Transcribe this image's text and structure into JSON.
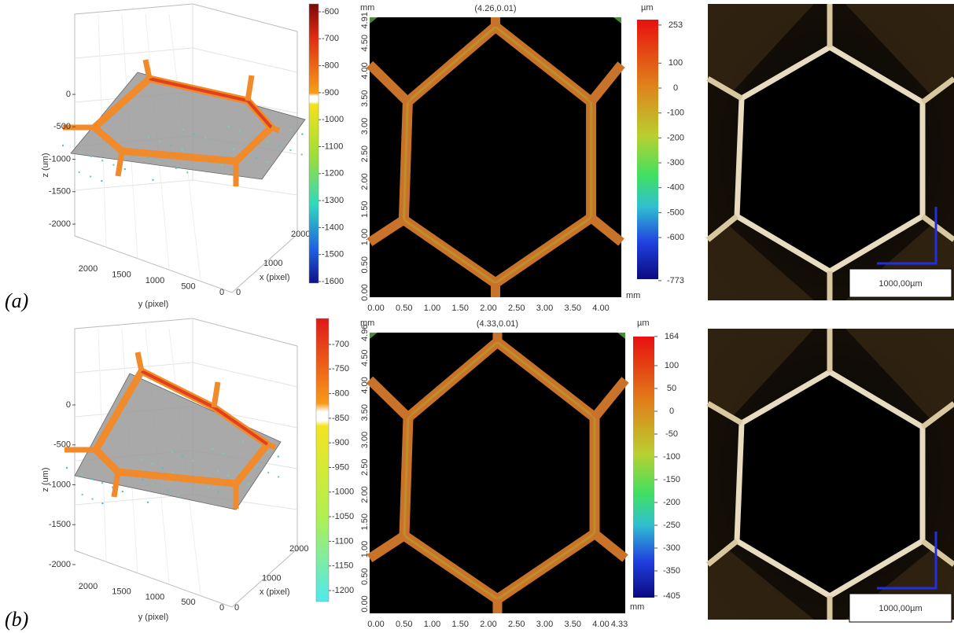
{
  "panels": [
    {
      "label": "(a)",
      "plot3d": {
        "zlabel": "z (um)",
        "xlabel": "x (pixel)",
        "ylabel": "y (pixel)",
        "zticks": [
          "0",
          "-500",
          "-1000",
          "-1500",
          "-2000"
        ],
        "xticks": [
          "0",
          "1000",
          "2000"
        ],
        "yticks": [
          "2000",
          "1500",
          "1000",
          "500",
          "0"
        ],
        "colorbar_ticks": [
          "-600",
          "-700",
          "-800",
          "-900",
          "-1000",
          "-1100",
          "-1200",
          "-1300",
          "-1400",
          "-1500",
          "-1600"
        ]
      },
      "heightmap": {
        "yunit": "mm",
        "xunit": "mm",
        "cursor": "(4.26,0.01)",
        "yticks": [
          "4.91",
          "4.50",
          "4.00",
          "3.50",
          "3.00",
          "2.50",
          "2.00",
          "1.50",
          "1.00",
          "0.50",
          "0.00"
        ],
        "xticks": [
          "0.00",
          "0.50",
          "1.00",
          "1.50",
          "2.00",
          "2.50",
          "3.00",
          "3.50",
          "4.00"
        ],
        "colorbar_unit": "µm",
        "colorbar_ticks": [
          "253",
          "100",
          "0",
          "-100",
          "-200",
          "-300",
          "-400",
          "-500",
          "-600",
          "-773"
        ]
      },
      "photo": {
        "scale_label": "1000,00µm"
      }
    },
    {
      "label": "(b)",
      "plot3d": {
        "zlabel": "z (um)",
        "xlabel": "x (pixel)",
        "ylabel": "y (pixel)",
        "zticks": [
          "0",
          "-500",
          "-1000",
          "-1500",
          "-2000"
        ],
        "xticks": [
          "0",
          "1000",
          "2000"
        ],
        "yticks": [
          "2000",
          "1500",
          "1000",
          "500",
          "0"
        ],
        "colorbar_ticks": [
          "-700",
          "-750",
          "-800",
          "-850",
          "-900",
          "-950",
          "-1000",
          "-1050",
          "-1100",
          "-1150",
          "-1200"
        ]
      },
      "heightmap": {
        "yunit": "mm",
        "xunit": "mm",
        "cursor": "(4.33,0.01)",
        "yticks": [
          "4.96",
          "4.50",
          "4.00",
          "3.50",
          "3.00",
          "2.50",
          "2.00",
          "1.50",
          "1.00",
          "0.50",
          "0.00"
        ],
        "xticks": [
          "0.00",
          "0.50",
          "1.00",
          "1.50",
          "2.00",
          "2.50",
          "3.00",
          "3.50",
          "4.00",
          "4.33"
        ],
        "colorbar_unit": "µm",
        "colorbar_ticks": [
          "164",
          "100",
          "50",
          "0",
          "-50",
          "-100",
          "-150",
          "-200",
          "-250",
          "-300",
          "-350",
          "-405"
        ]
      },
      "photo": {
        "scale_label": "1000,00µm"
      }
    }
  ]
}
